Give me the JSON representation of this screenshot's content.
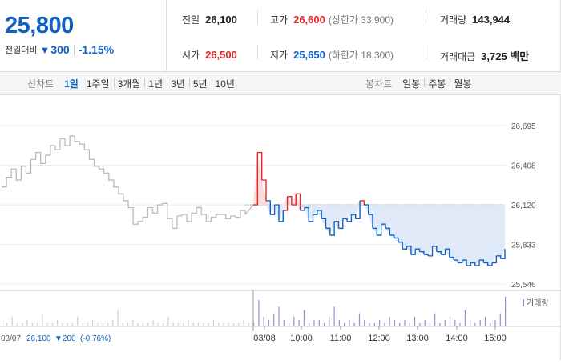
{
  "price": {
    "current": "25,800",
    "change_label": "전일대비",
    "change_icon": "down-triangle-icon",
    "change_abs": "300",
    "change_pct": "-1.15%"
  },
  "stats": {
    "prev_label": "전일",
    "prev_value": "26,100",
    "high_label": "고가",
    "high_value": "26,600",
    "upper_limit": "(상한가 33,900)",
    "volume_label": "거래량",
    "volume_value": "143,944",
    "open_label": "시가",
    "open_value": "26,500",
    "low_label": "저가",
    "low_value": "25,650",
    "lower_limit": "(하한가 18,300)",
    "amount_label": "거래대금",
    "amount_value": "3,725 백만"
  },
  "line_chart_tabs": {
    "label": "선차트",
    "items": [
      "1일",
      "1주일",
      "3개월",
      "1년",
      "3년",
      "5년",
      "10년"
    ],
    "active": "1일"
  },
  "candle_chart_tabs": {
    "label": "봉차트",
    "items": [
      "일봉",
      "주봉",
      "월봉"
    ]
  },
  "colors": {
    "up": "#e22926",
    "down": "#1261c4",
    "prev_day_line": "#bbbbbb",
    "fill_below_prev": "#dfe9f8",
    "volume_bar": "#9b8fd0"
  },
  "chart_data": {
    "type": "line",
    "y_ticks": [
      "26,695",
      "26,408",
      "26,120",
      "25,833",
      "25,546"
    ],
    "ylim": [
      25546,
      26695
    ],
    "reference_price": 26120,
    "x_ticks": [
      "03/08",
      "10:00",
      "11:00",
      "12:00",
      "13:00",
      "14:00",
      "15:00"
    ],
    "legend": "거래량",
    "footer_prev_day": "03/07",
    "footer_prev_close": "26,100",
    "footer_prev_change": "▼200",
    "footer_prev_pct": "(-0.76%)",
    "series": [
      {
        "segment": "previous-day",
        "values": [
          26250,
          26320,
          26380,
          26300,
          26400,
          26350,
          26450,
          26500,
          26420,
          26480,
          26550,
          26520,
          26600,
          26550,
          26620,
          26580,
          26560,
          26520,
          26450,
          26400,
          26380,
          26350,
          26300,
          26250,
          26200,
          26150,
          26100,
          25980,
          26000,
          26030,
          26100,
          26060,
          26120,
          26130,
          26020,
          25950,
          26040,
          26050,
          26000,
          26060,
          26100,
          26050,
          26000,
          26030,
          26050,
          26050,
          26020,
          26040,
          26030,
          26080,
          26050
        ]
      },
      {
        "segment": "today",
        "values": [
          26120,
          26500,
          26300,
          26150,
          26050,
          26120,
          26000,
          26080,
          26180,
          26120,
          26200,
          26080,
          26100,
          26000,
          26050,
          26080,
          26020,
          25950,
          25900,
          26000,
          25950,
          26020,
          26000,
          26050,
          26020,
          26150,
          26120,
          26050,
          25950,
          25900,
          25980,
          25950,
          25900,
          25880,
          25850,
          25800,
          25820,
          25760,
          25800,
          25780,
          25760,
          25750,
          25820,
          25780,
          25760,
          25800,
          25740,
          25720,
          25700,
          25720,
          25680,
          25700,
          25680,
          25720,
          25700,
          25680,
          25700,
          25750,
          25730,
          25800
        ]
      }
    ],
    "volume": [
      2,
      1,
      3,
      1,
      1,
      2,
      1,
      1,
      4,
      1,
      1,
      2,
      1,
      1,
      1,
      3,
      1,
      1,
      2,
      1,
      1,
      1,
      2,
      5,
      1,
      1,
      2,
      1,
      1,
      1,
      2,
      1,
      1,
      3,
      1,
      1,
      1,
      2,
      1,
      1,
      1,
      1,
      2,
      1,
      1,
      1,
      1,
      1,
      2,
      1,
      1,
      8,
      3,
      2,
      4,
      6,
      2,
      1,
      3,
      2,
      5,
      1,
      2,
      2,
      1,
      3,
      6,
      2,
      1,
      2,
      1,
      4,
      2,
      1,
      1,
      2,
      1,
      3,
      2,
      1,
      2,
      1,
      3,
      1,
      2,
      1,
      4,
      1,
      2,
      3,
      2,
      1,
      5,
      2,
      1,
      2,
      3,
      1,
      2,
      4,
      9
    ]
  }
}
